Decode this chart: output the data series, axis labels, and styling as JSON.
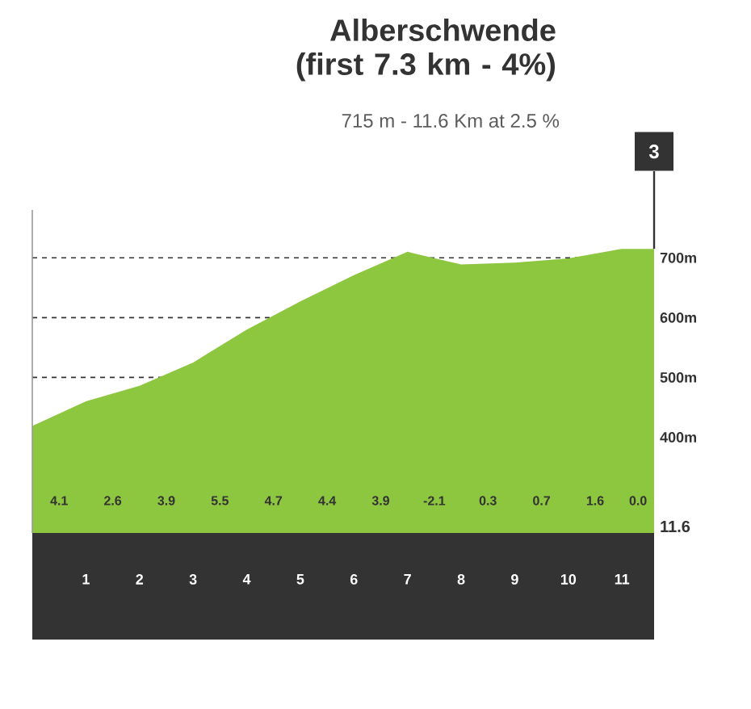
{
  "chart_data": {
    "type": "area",
    "title": "Alberschwende (first 7.3 km - 4%)",
    "subtitle": "715 m - 11.6 Km at 2.5 %",
    "x": [
      0,
      1,
      2,
      3,
      4,
      5,
      6,
      7,
      8,
      9,
      10,
      11,
      11.6
    ],
    "values": [
      419,
      460,
      486,
      525,
      580,
      627,
      671,
      710,
      689,
      692,
      699,
      715,
      715
    ],
    "color": "#8dc63f",
    "xlim": [
      0,
      11.6
    ],
    "ylim": [
      240,
      780
    ],
    "xticks": [
      1,
      2,
      3,
      4,
      5,
      6,
      7,
      8,
      9,
      10,
      11
    ],
    "yticks": [
      {
        "value": 400,
        "label": "400m"
      },
      {
        "value": 500,
        "label": "500m"
      },
      {
        "value": 600,
        "label": "600m"
      },
      {
        "value": 700,
        "label": "700m"
      }
    ],
    "grid": true,
    "annotations": [
      "4.1",
      "2.6",
      "3.9",
      "5.5",
      "4.7",
      "4.4",
      "3.9",
      "-2.1",
      "0.3",
      "0.7",
      "1.6",
      "0.0",
      "11.6",
      {
        "text": "3",
        "x": 11.6,
        "y": 715
      }
    ]
  }
}
